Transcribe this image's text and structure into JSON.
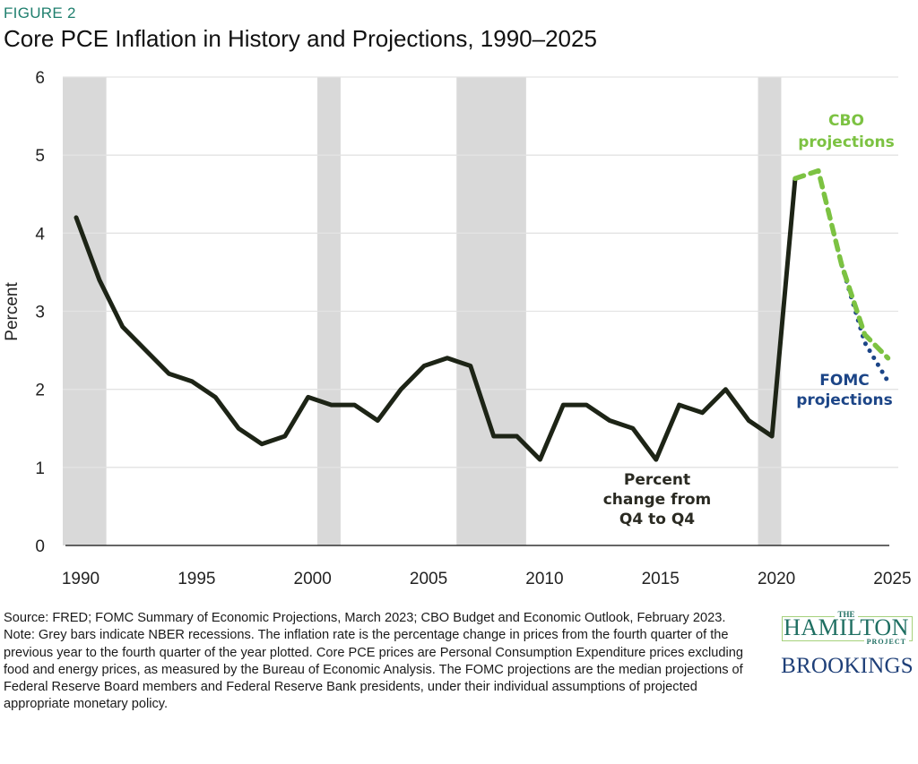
{
  "header": {
    "figure_label": "FIGURE 2",
    "title": "Core PCE Inflation in History and Projections, 1990–2025"
  },
  "chart_data": {
    "type": "line",
    "title": "Core PCE Inflation in History and Projections, 1990–2025",
    "xlabel": "",
    "ylabel": "Percent",
    "xlim": [
      1990,
      2025
    ],
    "ylim": [
      0,
      6
    ],
    "x_ticks": [
      1990,
      1995,
      2000,
      2005,
      2010,
      2015,
      2020,
      2025
    ],
    "x_tick_labels": [
      "1990",
      "1995",
      "2000",
      "2005",
      "2010",
      "2015",
      "2020",
      "2025"
    ],
    "y_ticks": [
      0,
      1,
      2,
      3,
      4,
      5,
      6
    ],
    "y_tick_labels": [
      "0",
      "1",
      "2",
      "3",
      "4",
      "5",
      "6"
    ],
    "grid": "horizontal",
    "recessions": [
      {
        "label": "1990–1991 recession",
        "start": 1989.4,
        "end": 1991.3
      },
      {
        "label": "2001 recession",
        "start": 2000.4,
        "end": 2001.4
      },
      {
        "label": "2007–2009 recession",
        "start": 2006.4,
        "end": 2009.4
      },
      {
        "label": "2020 recession",
        "start": 2019.4,
        "end": 2020.4
      }
    ],
    "series": [
      {
        "name": "Percent change from Q4 to Q4",
        "style": "solid",
        "color": "#1d2416",
        "x": [
          1990,
          1991,
          1992,
          1993,
          1994,
          1995,
          1996,
          1997,
          1998,
          1999,
          2000,
          2001,
          2002,
          2003,
          2004,
          2005,
          2006,
          2007,
          2008,
          2009,
          2010,
          2011,
          2012,
          2013,
          2014,
          2015,
          2016,
          2017,
          2018,
          2019,
          2020,
          2021
        ],
        "values": [
          4.2,
          3.4,
          2.8,
          2.5,
          2.2,
          2.1,
          1.9,
          1.5,
          1.3,
          1.4,
          1.9,
          1.8,
          1.8,
          1.6,
          2.0,
          2.3,
          2.4,
          2.3,
          1.4,
          1.4,
          1.1,
          1.8,
          1.8,
          1.6,
          1.5,
          1.1,
          1.8,
          1.7,
          2.0,
          1.6,
          1.4,
          4.7
        ]
      },
      {
        "name": "CBO projections",
        "style": "dashed",
        "color": "#7cc242",
        "x": [
          2021,
          2022,
          2023,
          2024,
          2025
        ],
        "values": [
          4.7,
          4.8,
          3.6,
          2.7,
          2.4
        ]
      },
      {
        "name": "FOMC projections",
        "style": "dotted",
        "color": "#1c4587",
        "x": [
          2021,
          2022,
          2023,
          2024,
          2025
        ],
        "values": [
          4.7,
          4.8,
          3.6,
          2.6,
          2.1
        ]
      }
    ],
    "annotations": [
      {
        "name": "history-label",
        "lines": [
          "Percent",
          "change from",
          "Q4 to Q4"
        ],
        "color": "#2a2a22"
      },
      {
        "name": "cbo-label",
        "lines": [
          "CBO",
          "projections"
        ],
        "color": "#7cc242"
      },
      {
        "name": "fomc-label",
        "lines": [
          "FOMC",
          "projections"
        ],
        "color": "#1c4587"
      }
    ]
  },
  "footer": {
    "source": "Source: FRED; FOMC Summary of Economic Projections, March 2023; CBO Budget and Economic Outlook, February 2023.",
    "note": "Note: Grey bars indicate NBER recessions. The inflation rate is the percentage change in prices from the fourth quarter of the previous year to the fourth quarter of the year plotted. Core PCE prices are Personal Consumption Expenditure prices excluding food and energy prices, as measured by the Bureau of Economic Analysis. The FOMC projections are the median projections of Federal Reserve Board members and Federal Reserve Bank presidents, under their individual assumptions of projected appropriate monetary policy."
  },
  "logos": {
    "hamilton_the": "THE",
    "hamilton_name": "HAMILTON",
    "hamilton_project": "PROJECT",
    "brookings": "BROOKINGS"
  }
}
